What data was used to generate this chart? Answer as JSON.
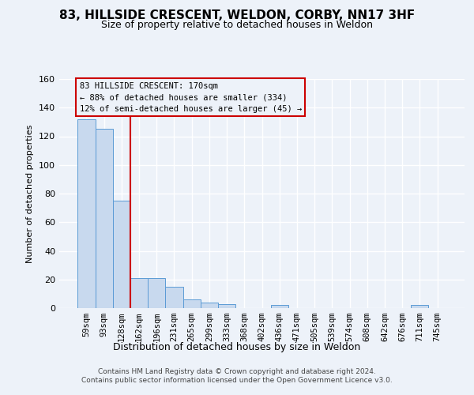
{
  "title_line1": "83, HILLSIDE CRESCENT, WELDON, CORBY, NN17 3HF",
  "title_line2": "Size of property relative to detached houses in Weldon",
  "xlabel": "Distribution of detached houses by size in Weldon",
  "ylabel": "Number of detached properties",
  "bar_color": "#c8d9ee",
  "bar_edge_color": "#5b9bd5",
  "vline_color": "#cc0000",
  "vline_position": 2.5,
  "annotation_line1": "83 HILLSIDE CRESCENT: 170sqm",
  "annotation_line2": "← 88% of detached houses are smaller (334)",
  "annotation_line3": "12% of semi-detached houses are larger (45) →",
  "categories": [
    "59sqm",
    "93sqm",
    "128sqm",
    "162sqm",
    "196sqm",
    "231sqm",
    "265sqm",
    "299sqm",
    "333sqm",
    "368sqm",
    "402sqm",
    "436sqm",
    "471sqm",
    "505sqm",
    "539sqm",
    "574sqm",
    "608sqm",
    "642sqm",
    "676sqm",
    "711sqm",
    "745sqm"
  ],
  "values": [
    132,
    125,
    75,
    21,
    21,
    15,
    6,
    4,
    3,
    0,
    0,
    2,
    0,
    0,
    0,
    0,
    0,
    0,
    0,
    2,
    0
  ],
  "ylim": [
    0,
    160
  ],
  "yticks": [
    0,
    20,
    40,
    60,
    80,
    100,
    120,
    140,
    160
  ],
  "bg_color": "#edf2f9",
  "grid_color": "#ffffff",
  "footer_line1": "Contains HM Land Registry data © Crown copyright and database right 2024.",
  "footer_line2": "Contains public sector information licensed under the Open Government Licence v3.0."
}
